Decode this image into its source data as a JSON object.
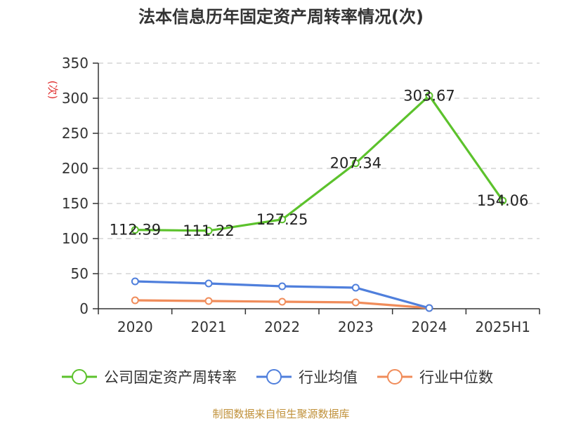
{
  "chart_data": {
    "type": "line",
    "title": "法本信息历年固定资产周转率情况(次)",
    "ylabel": "(次)",
    "xlabel": "",
    "categories": [
      "2020",
      "2021",
      "2022",
      "2023",
      "2024",
      "2025H1"
    ],
    "ylim": [
      0,
      350
    ],
    "yticks": [
      0,
      50,
      100,
      150,
      200,
      250,
      300,
      350
    ],
    "grid": true,
    "legend_position": "bottom",
    "series": [
      {
        "name": "公司固定资产周转率",
        "color": "#5cc22c",
        "values": [
          112.39,
          111.22,
          127.25,
          207.34,
          303.67,
          154.06
        ],
        "labels": [
          "112.39",
          "111.22",
          "127.25",
          "207.34",
          "303.67",
          "154.06"
        ]
      },
      {
        "name": "行业均值",
        "color": "#4f7fdc",
        "values": [
          39,
          36,
          32,
          30,
          1,
          null
        ]
      },
      {
        "name": "行业中位数",
        "color": "#f08c5a",
        "values": [
          12,
          11,
          10,
          9,
          1,
          null
        ]
      }
    ],
    "source": "制图数据来自恒生聚源数据库"
  }
}
